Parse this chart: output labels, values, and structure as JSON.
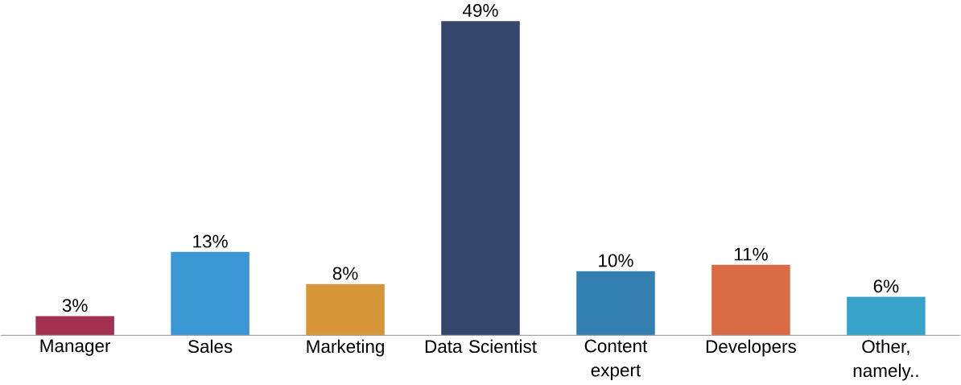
{
  "chart_data": {
    "type": "bar",
    "categories": [
      "Manager",
      "Sales",
      "Marketing",
      "Data Scientist",
      "Content expert",
      "Developers",
      "Other, namely.."
    ],
    "values": [
      3,
      13,
      8,
      49,
      10,
      11,
      6
    ],
    "colors": [
      "#a3304f",
      "#3a97d4",
      "#d69536",
      "#34466b",
      "#337fb0",
      "#d86b43",
      "#37a3c8"
    ],
    "value_labels": [
      "3%",
      "13%",
      "8%",
      "49%",
      "10%",
      "11%",
      "6%"
    ]
  }
}
